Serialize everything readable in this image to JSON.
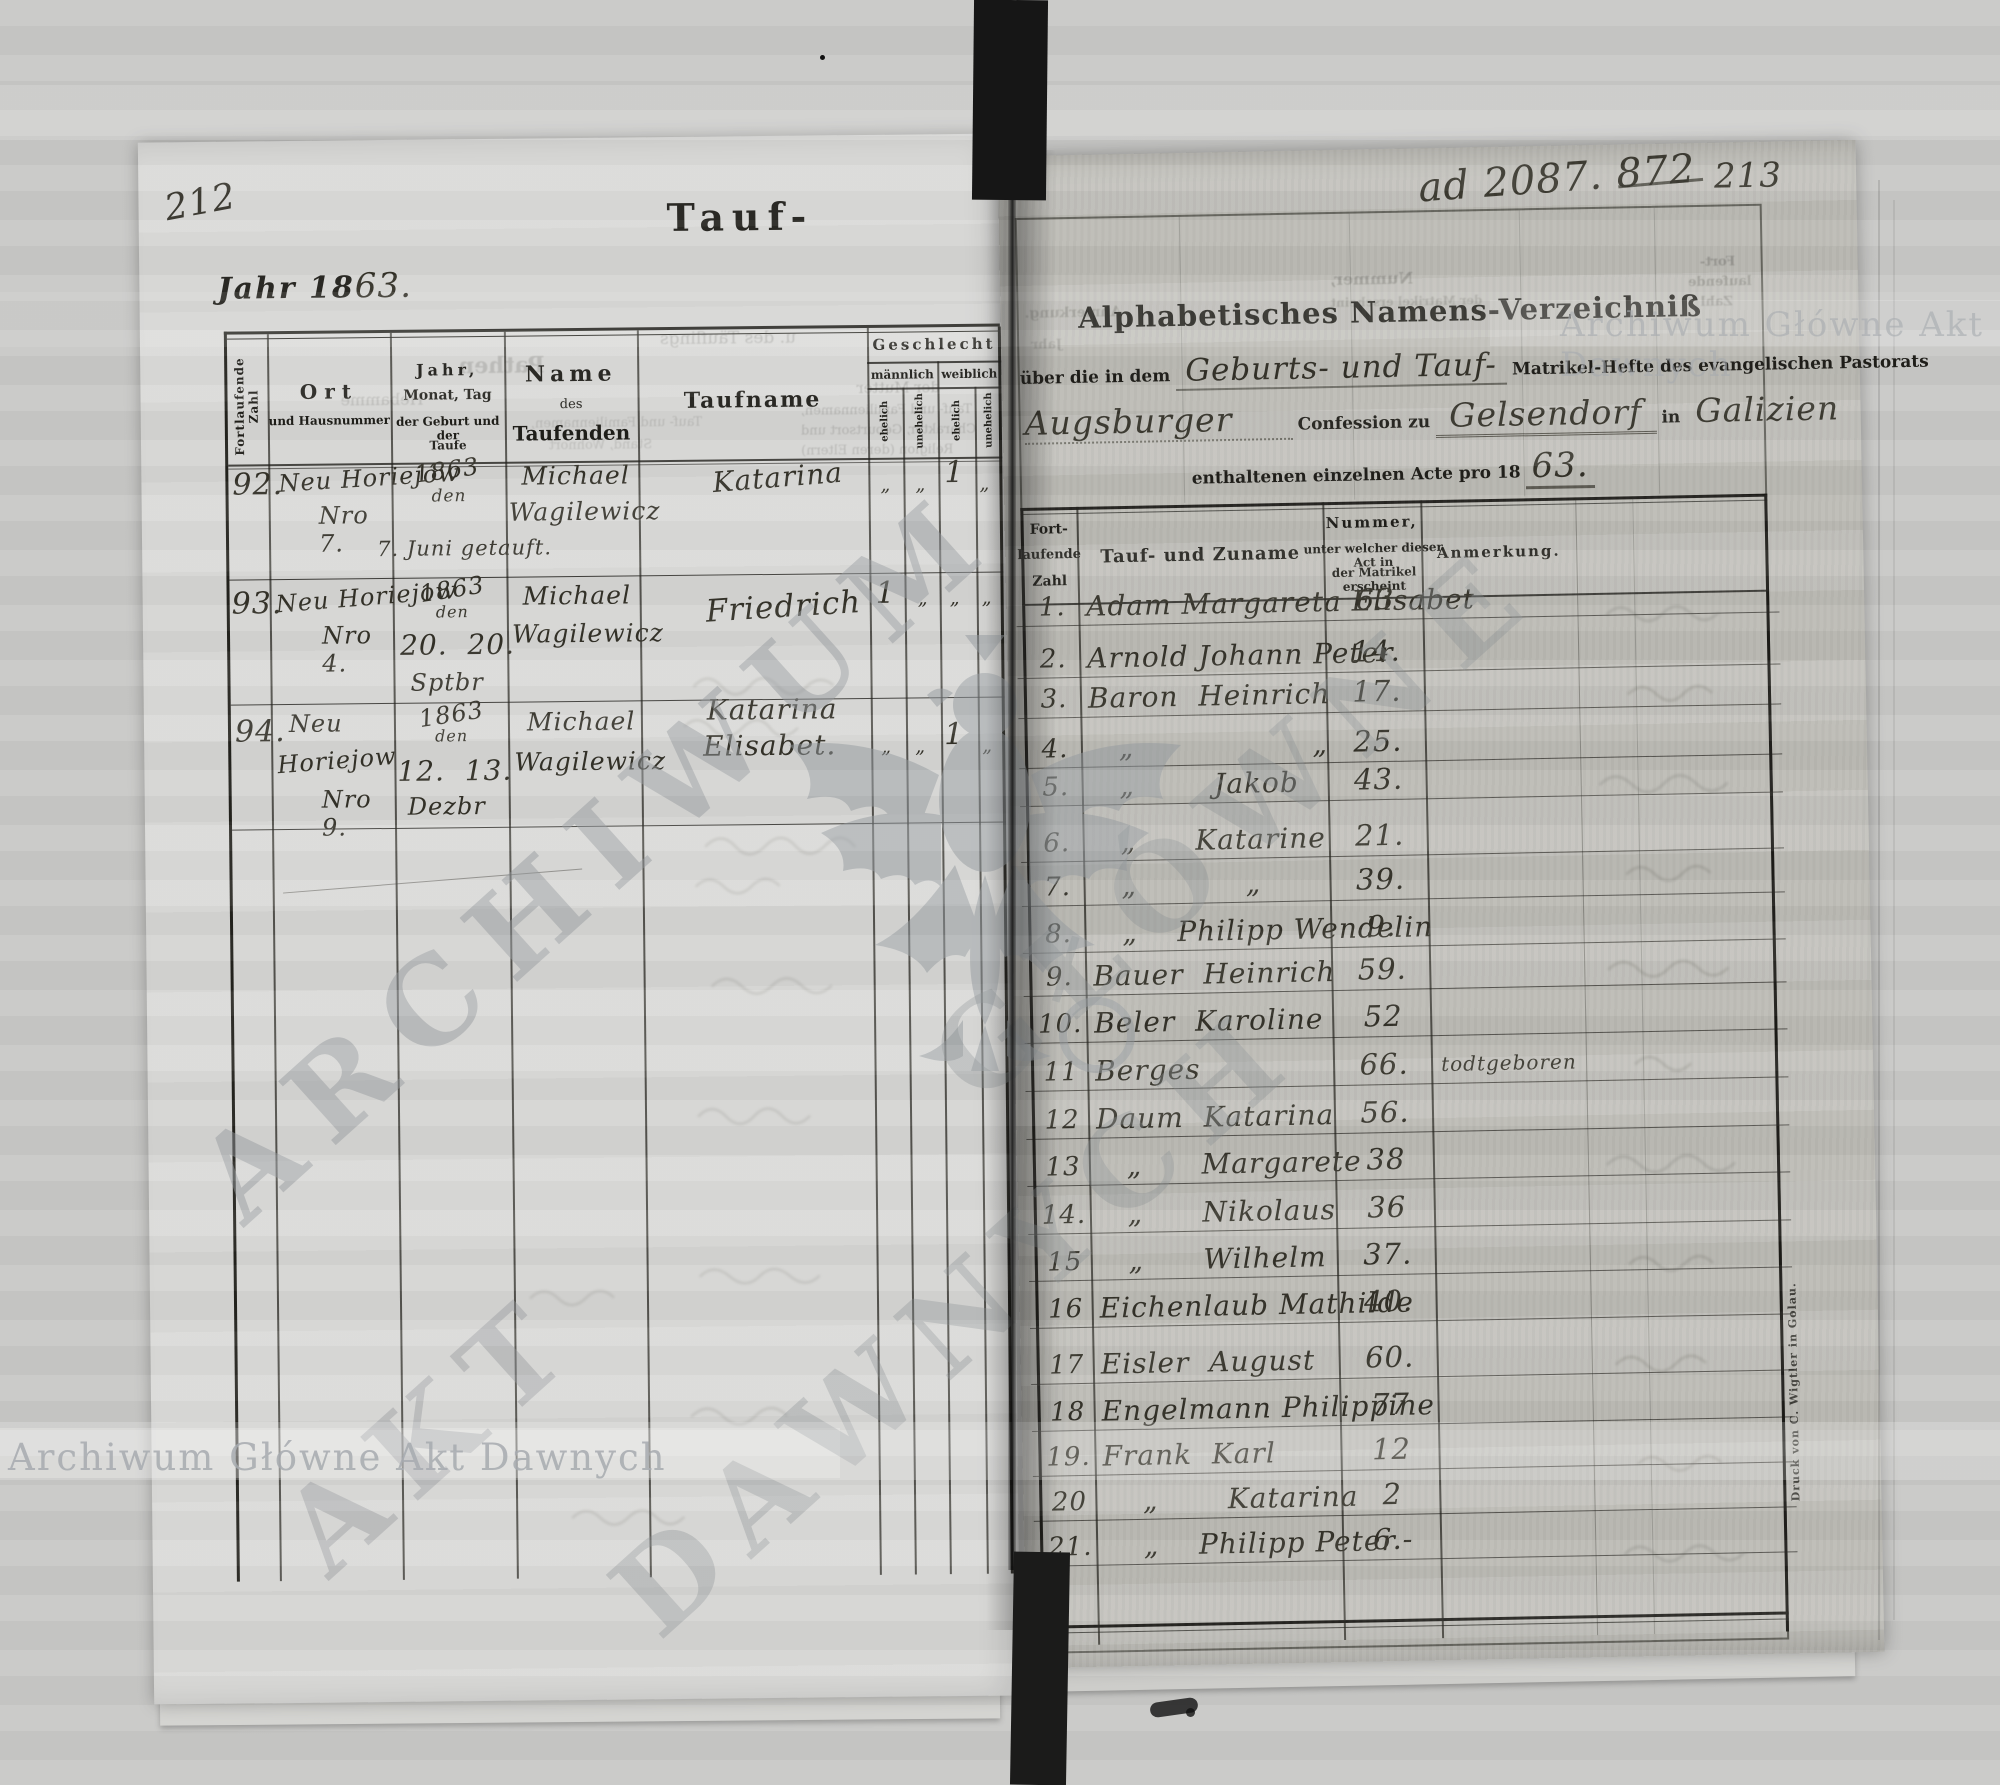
{
  "left_page": {
    "page_number": "212",
    "year_printed": "Jahr 18",
    "year_handwritten": "63.",
    "title": "Tauf-",
    "headers": {
      "serial": "Fortlaufende Zahl",
      "place_1": "Ort",
      "place_2": "und Hausnummer",
      "date_1": "Jahr,",
      "date_2": "Monat, Tag",
      "date_3": "der Geburt und der",
      "date_4": "Taufe",
      "name_1": "Name",
      "name_2": "des",
      "name_3": "Taufenden",
      "baptname": "Taufname",
      "sex": "Geschlecht",
      "male": "männlich",
      "female": "weiblich",
      "legitimate": "ehelich",
      "illegitimate": "unehelich"
    },
    "entries": [
      {
        "number": "92.",
        "place1": "Neu Horiejów",
        "place2": "Nro 7.",
        "date1": "1863",
        "date2": "den",
        "date_note": "7. Juni getauft.",
        "name1": "Michael",
        "name2": "Wagilewicz",
        "tauf1": "Katarina",
        "tauf2": "",
        "m_e": "„",
        "m_u": "„",
        "f_e": "1",
        "f_u": "„"
      },
      {
        "number": "93.",
        "place1": "Neu Horiejow",
        "place2": "Nro 4.",
        "date1": "1863",
        "date2": "den",
        "date3": "20.  20.",
        "date4": "Sptbr",
        "name1": "Michael",
        "name2": "Wagilewicz",
        "tauf1": "Friedrich",
        "tauf2": "",
        "m_e": "1",
        "m_u": "„",
        "f_e": "„",
        "f_u": "„"
      },
      {
        "number": "94.",
        "place1": "Neu",
        "place2": "Horiejow",
        "place3": "Nro 9.",
        "date1": "1863",
        "date2": "den",
        "date3": "12.  13.",
        "date4": "Dezbr",
        "name1": "Michael",
        "name2": "Wagilewicz",
        "tauf1": "Katarina",
        "tauf2": "Elisabet.",
        "m_e": "„",
        "m_u": "„",
        "f_e": "1",
        "f_u": "„"
      }
    ],
    "bleed_through": {
      "pathen": "Pathen",
      "hebamme": "Hebamme",
      "taeufling": "u. des Täuflings",
      "mutter": "der Mutter",
      "fam1": "Tauf- und Familiennamen,",
      "fam2": "Charakter, Geburtsort und",
      "fam3": "Religion (deren Eltern)",
      "stand": "Stand, Wohnort"
    }
  },
  "right_page": {
    "annotation": "ad 2087. 872",
    "page_number": "213",
    "title": "Alphabetisches Namens-Verzeichniß",
    "line2_printed1": "über die in dem",
    "line2_handwritten": "Geburts- und Tauf-",
    "line2_printed2": "Matrikel-Hefte des evangelischen Pastorats",
    "line3_handwritten1": "Augsburger",
    "line3_printed1": "Confession zu",
    "line3_handwritten2": "Gelsendorf",
    "line3_printed2": "in",
    "line3_handwritten3": "Galizien",
    "line4_printed": "enthaltenen einzelnen Acte pro 18",
    "line4_handwritten": "63.",
    "index": {
      "headers": {
        "serial_1": "Fort-",
        "serial_2": "laufende",
        "serial_3": "Zahl",
        "name": "Tauf- und Zuname",
        "number_1": "Nummer,",
        "number_2": "unter welcher dieser Act in",
        "number_3": "der Matrikel erscheint",
        "note": "Anmerkung."
      },
      "rows": [
        {
          "n": "1.",
          "name": "Adam Margareta Elisabet",
          "num": "63",
          "note": ""
        },
        {
          "n": "2.",
          "name": "Arnold Johann Peter",
          "num": "14.",
          "note": ""
        },
        {
          "n": "3.",
          "name": "Baron  Heinrich",
          "num": "17.",
          "note": ""
        },
        {
          "n": "4.",
          "name": "   „                  „",
          "num": "25.",
          "note": ""
        },
        {
          "n": "5.",
          "name": "   „        Jakob",
          "num": "43.",
          "note": ""
        },
        {
          "n": "6.",
          "name": "   „      Katarine",
          "num": "21.",
          "note": ""
        },
        {
          "n": "7.",
          "name": "   „           „",
          "num": "39.",
          "note": ""
        },
        {
          "n": "8.",
          "name": "   „    Philipp Wendelin",
          "num": "9.",
          "note": ""
        },
        {
          "n": "9.",
          "name": "Bauer  Heinrich",
          "num": "59.",
          "note": ""
        },
        {
          "n": "10.",
          "name": "Beler  Karoline",
          "num": "52",
          "note": ""
        },
        {
          "n": "11",
          "name": "Berges",
          "num": "66.",
          "note": "todtgeboren"
        },
        {
          "n": "12",
          "name": "Daum  Katarina",
          "num": "56.",
          "note": ""
        },
        {
          "n": "13",
          "name": "   „      Margarete",
          "num": "38",
          "note": ""
        },
        {
          "n": "14.",
          "name": "   „      Nikolaus",
          "num": "36",
          "note": ""
        },
        {
          "n": "15",
          "name": "   „      Wilhelm",
          "num": "37.",
          "note": ""
        },
        {
          "n": "16",
          "name": "Eichenlaub Mathilde",
          "num": "40.",
          "note": ""
        },
        {
          "n": "17",
          "name": "Eisler  August",
          "num": "60.",
          "note": ""
        },
        {
          "n": "18",
          "name": "Engelmann Philippine",
          "num": "77",
          "note": ""
        },
        {
          "n": "19.",
          "name": "Frank  Karl",
          "num": "12",
          "note": ""
        },
        {
          "n": "20",
          "name": "    „       Katarina",
          "num": "2",
          "note": ""
        },
        {
          "n": "21.",
          "name": "    „    Philipp Peter",
          "num": "6.-",
          "note": ""
        }
      ]
    },
    "printer_line": "Druck von C. Wigtler in Golau.",
    "bleed_through": {
      "nummer": "Nummer,",
      "fort": "Fort-",
      "laufende": "laufende",
      "zahl": "Zahl",
      "anmerkung": "Anmerkung.",
      "jahr": "Jahr"
    }
  },
  "watermarks": {
    "archive_name": "Archiwum Główne Akt Dawnych",
    "diagonal": [
      "ARCHIWUM",
      "GŁÓWNE",
      "AKT",
      "DAWNYCH"
    ]
  }
}
